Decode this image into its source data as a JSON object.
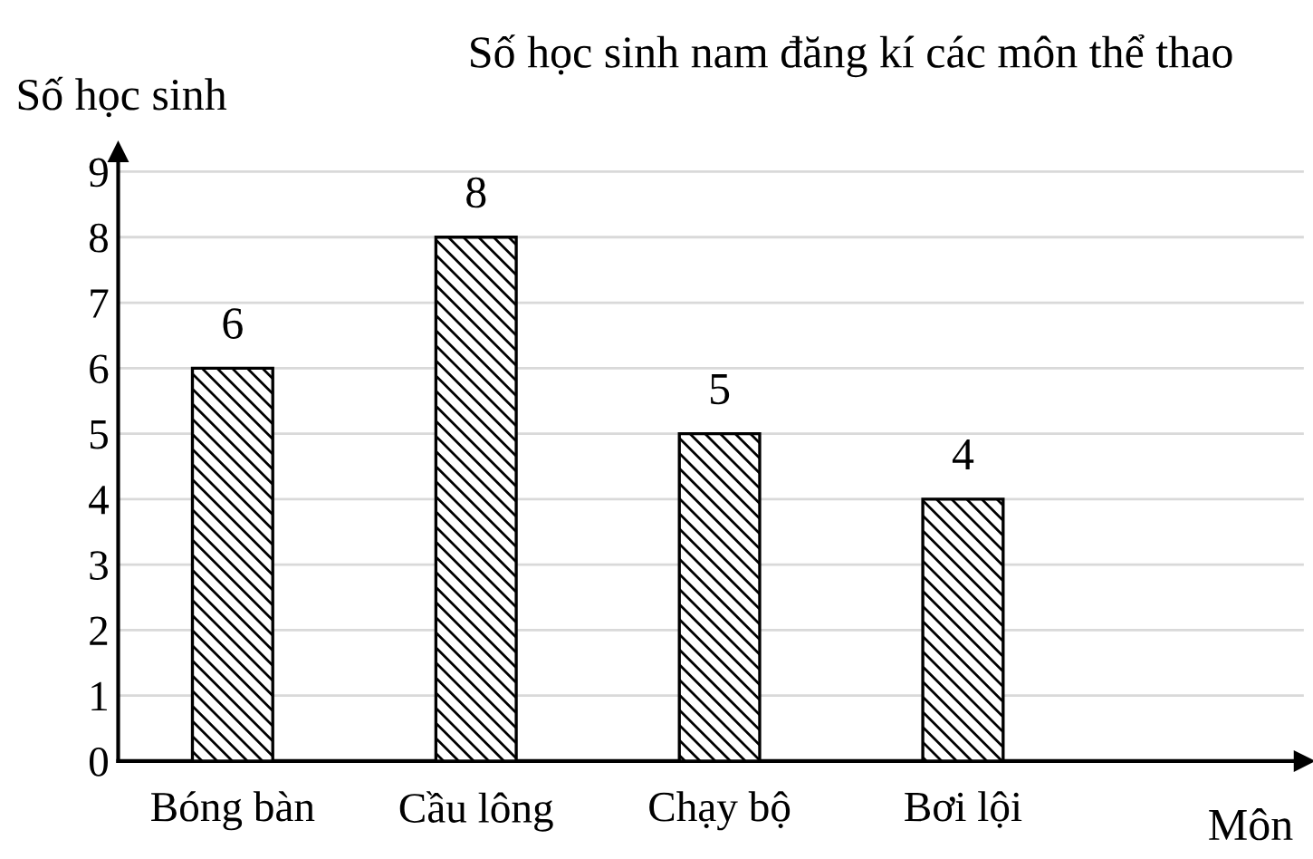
{
  "chart_data": {
    "type": "bar",
    "title": "Số học sinh nam đăng kí các môn thể thao",
    "xlabel": "Môn",
    "ylabel": "Số học sinh",
    "categories": [
      "Bóng bàn",
      "Cầu lông",
      "Chạy bộ",
      "Bơi lội"
    ],
    "values": [
      6,
      8,
      5,
      4
    ],
    "color": "#000000",
    "ylim": [
      0,
      9.3
    ],
    "yticks": [
      0,
      1,
      2,
      3,
      4,
      5,
      6,
      7,
      8,
      9
    ],
    "grid": "y",
    "data_labels": true,
    "legend": false
  }
}
